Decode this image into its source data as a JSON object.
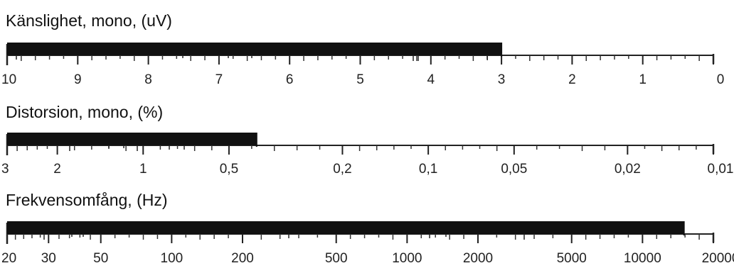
{
  "chart_data": [
    {
      "type": "bar",
      "title": "Känslighet, mono, (uV)",
      "direction": "decreasing left to right",
      "scale": "linear",
      "range": [
        10,
        0
      ],
      "ticks": [
        "10",
        "9",
        "8",
        "7",
        "6",
        "5",
        "4",
        "3",
        "2",
        "1",
        "0"
      ],
      "bar": {
        "from": 10,
        "to": 3
      },
      "color": "#111111"
    },
    {
      "type": "bar",
      "title": "Distorsion, mono, (%)",
      "direction": "decreasing left to right",
      "scale": "log",
      "range": [
        3,
        0.01
      ],
      "ticks": [
        "3",
        "2",
        "1",
        "0,5",
        "0,2",
        "0,1",
        "0,05",
        "0,02",
        "0,01"
      ],
      "bar": {
        "from": 3,
        "to": 0.4
      },
      "color": "#111111"
    },
    {
      "type": "bar",
      "title": "Frekvensomfång, (Hz)",
      "direction": "increasing left to right",
      "scale": "log",
      "range": [
        20,
        20000
      ],
      "ticks": [
        "20",
        "30",
        "50",
        "100",
        "200",
        "500",
        "1000",
        "2000",
        "5000",
        "10000",
        "20000"
      ],
      "bar": {
        "from": 20,
        "to": 15000
      },
      "color": "#111111"
    }
  ]
}
